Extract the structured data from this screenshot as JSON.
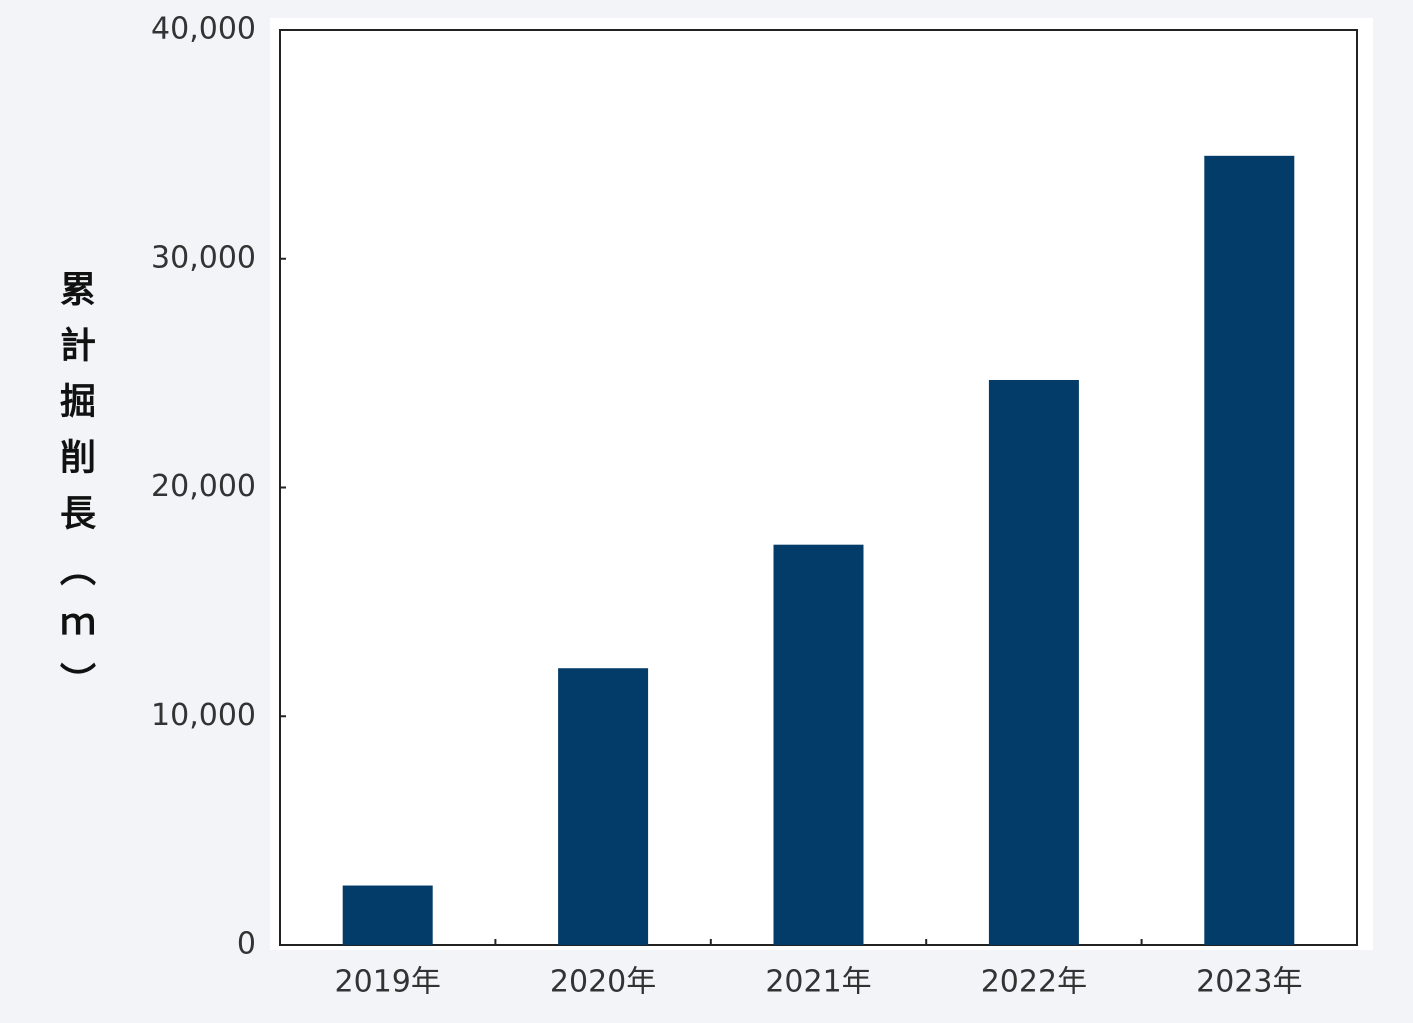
{
  "chart_data": {
    "type": "bar",
    "y_label": "累計掘削長（ｍ）",
    "categories": [
      "2019年",
      "2020年",
      "2021年",
      "2022年",
      "2023年"
    ],
    "values": [
      2600,
      12100,
      17500,
      24700,
      34500
    ],
    "color": "#033c68",
    "ylim": [
      0,
      40000
    ],
    "yticks": [
      0,
      {
        "value": 10000,
        "label": "10,000"
      },
      {
        "value": 20000,
        "label": "20,000"
      },
      {
        "value": 30000,
        "label": "30,000"
      },
      {
        "value": 40000,
        "label": "40,000"
      }
    ],
    "grid": false
  }
}
